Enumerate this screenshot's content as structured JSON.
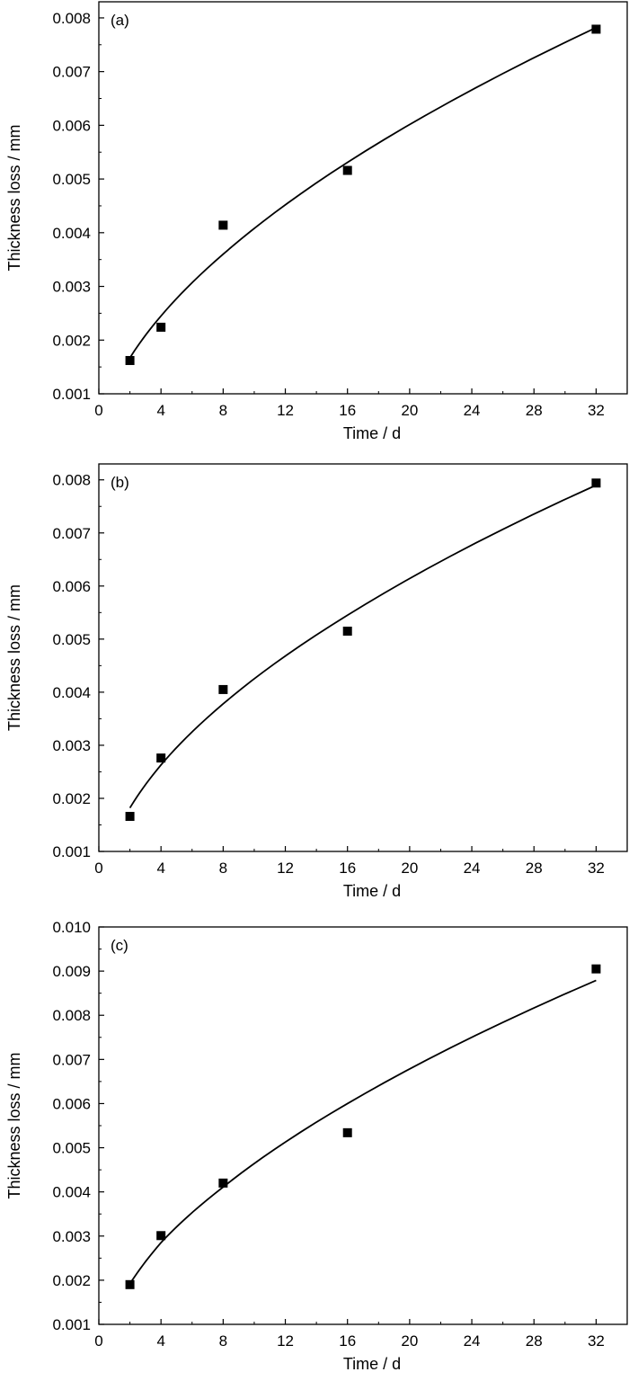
{
  "chart_data": [
    {
      "type": "scatter",
      "panel_label": "(a)",
      "xlabel": "Time / d",
      "ylabel": "Thickness loss / mm",
      "xlim": [
        0,
        34
      ],
      "ylim": [
        0.001,
        0.0083
      ],
      "xticks": [
        0,
        4,
        8,
        12,
        16,
        20,
        24,
        28,
        32
      ],
      "yticks": [
        "0.001",
        "0.002",
        "0.003",
        "0.004",
        "0.005",
        "0.006",
        "0.007",
        "0.008"
      ],
      "grid": false,
      "series": [
        {
          "marker": "square",
          "color": "#000000",
          "x": [
            2,
            4,
            8,
            16,
            32
          ],
          "y": [
            0.00162,
            0.00224,
            0.00414,
            0.00516,
            0.00779
          ]
        }
      ],
      "fit_curve": {
        "x": [
          2,
          4,
          8,
          16,
          32
        ],
        "y": [
          0.00167,
          0.00245,
          0.0036,
          0.00531,
          0.00782
        ]
      }
    },
    {
      "type": "scatter",
      "panel_label": "(b)",
      "xlabel": "Time / d",
      "ylabel": "Thickness loss / mm",
      "xlim": [
        0,
        34
      ],
      "ylim": [
        0.001,
        0.0083
      ],
      "xticks": [
        0,
        4,
        8,
        12,
        16,
        20,
        24,
        28,
        32
      ],
      "yticks": [
        "0.001",
        "0.002",
        "0.003",
        "0.004",
        "0.005",
        "0.006",
        "0.007",
        "0.008"
      ],
      "grid": false,
      "series": [
        {
          "marker": "square",
          "color": "#000000",
          "x": [
            2,
            4,
            8,
            16,
            32
          ],
          "y": [
            0.00166,
            0.00276,
            0.00405,
            0.00515,
            0.00794
          ]
        }
      ],
      "fit_curve": {
        "x": [
          2,
          4,
          8,
          16,
          32
        ],
        "y": [
          0.00182,
          0.00263,
          0.00378,
          0.00545,
          0.0079
        ]
      }
    },
    {
      "type": "scatter",
      "panel_label": "(c)",
      "xlabel": "Time / d",
      "ylabel": "Thickness loss / mm",
      "xlim": [
        0,
        34
      ],
      "ylim": [
        0.001,
        0.01
      ],
      "xticks": [
        0,
        4,
        8,
        12,
        16,
        20,
        24,
        28,
        32
      ],
      "yticks": [
        "0.001",
        "0.002",
        "0.003",
        "0.004",
        "0.005",
        "0.006",
        "0.007",
        "0.008",
        "0.009",
        "0.010"
      ],
      "grid": false,
      "series": [
        {
          "marker": "square",
          "color": "#000000",
          "x": [
            2,
            4,
            8,
            16,
            32
          ],
          "y": [
            0.0019,
            0.00301,
            0.0042,
            0.00534,
            0.00905
          ]
        }
      ],
      "fit_curve": {
        "x": [
          2,
          4,
          8,
          16,
          32
        ],
        "y": [
          0.00192,
          0.00285,
          0.00411,
          0.006,
          0.00879
        ]
      }
    }
  ]
}
